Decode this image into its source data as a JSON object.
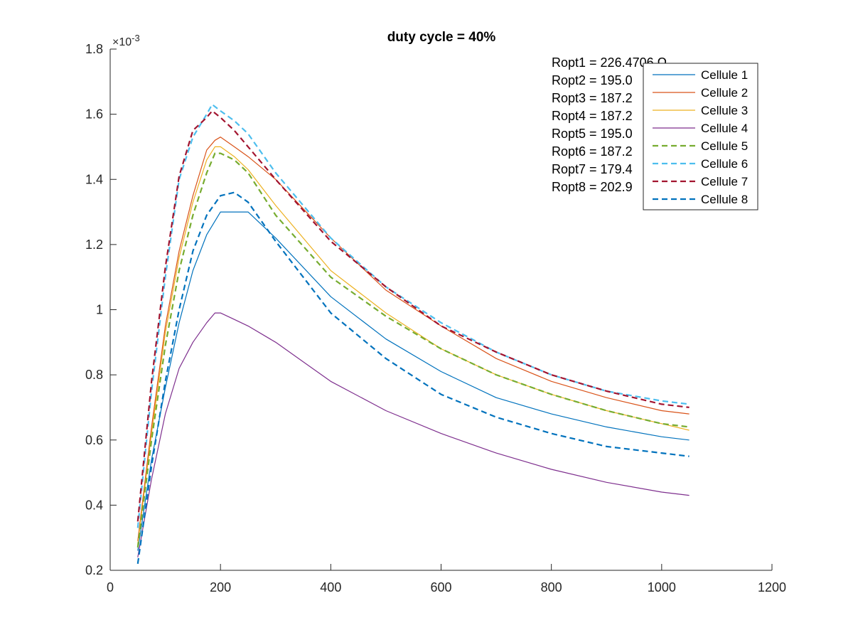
{
  "chart_data": {
    "type": "line",
    "title": "duty cycle = 40%",
    "xlabel": "",
    "ylabel": "",
    "xlim": [
      0,
      1200
    ],
    "ylim": [
      0.0002,
      0.0018
    ],
    "x_ticks": [
      0,
      200,
      400,
      600,
      800,
      1000,
      1200
    ],
    "x_tick_labels": [
      "0",
      "200",
      "400",
      "600",
      "800",
      "1000",
      "1200"
    ],
    "y_ticks": [
      0.0002,
      0.0004,
      0.0006,
      0.0008,
      0.001,
      0.0012,
      0.0014,
      0.0016,
      0.0018
    ],
    "y_tick_labels": [
      "0.2",
      "0.4",
      "0.6",
      "0.8",
      "1",
      "1.2",
      "1.4",
      "1.6",
      "1.8"
    ],
    "y_exponent_label": "×10",
    "y_exponent_power": "-3",
    "grid": false,
    "legend_position": "top-right",
    "annotations": [
      "Ropt1 = 226.4706 Ω",
      "Ropt2 = 195.0",
      "Ropt3 = 187.2",
      "Ropt4 = 187.2",
      "Ropt5 = 195.0",
      "Ropt6 = 187.2",
      "Ropt7 = 179.4",
      "Ropt8 = 202.9"
    ],
    "series": [
      {
        "name": "Cellule 1",
        "color": "#0072BD",
        "dash": false,
        "x": [
          50,
          75,
          100,
          125,
          150,
          175,
          200,
          225,
          250,
          300,
          400,
          500,
          600,
          700,
          800,
          900,
          1000,
          1050
        ],
        "y": [
          0.00026,
          0.00054,
          0.00076,
          0.00096,
          0.00112,
          0.00123,
          0.0013,
          0.0013,
          0.0013,
          0.00122,
          0.00104,
          0.00091,
          0.00081,
          0.00073,
          0.00068,
          0.00064,
          0.00061,
          0.0006
        ]
      },
      {
        "name": "Cellule 2",
        "color": "#D95319",
        "dash": false,
        "x": [
          50,
          75,
          100,
          125,
          150,
          175,
          190,
          200,
          225,
          250,
          300,
          400,
          500,
          600,
          700,
          800,
          900,
          1000,
          1050
        ],
        "y": [
          0.00029,
          0.00064,
          0.00095,
          0.00118,
          0.00135,
          0.00149,
          0.00152,
          0.00153,
          0.0015,
          0.00147,
          0.0014,
          0.00122,
          0.00106,
          0.00095,
          0.00085,
          0.00078,
          0.00073,
          0.00069,
          0.00068
        ]
      },
      {
        "name": "Cellule 3",
        "color": "#EDB120",
        "dash": false,
        "x": [
          50,
          75,
          100,
          125,
          150,
          175,
          190,
          200,
          225,
          250,
          300,
          400,
          500,
          600,
          700,
          800,
          900,
          1000,
          1050
        ],
        "y": [
          0.00028,
          0.00062,
          0.00093,
          0.00116,
          0.00133,
          0.00146,
          0.0015,
          0.0015,
          0.00147,
          0.00143,
          0.00132,
          0.00112,
          0.00099,
          0.00088,
          0.0008,
          0.00074,
          0.00069,
          0.00065,
          0.00063
        ]
      },
      {
        "name": "Cellule 4",
        "color": "#7E2F8E",
        "dash": false,
        "x": [
          50,
          75,
          100,
          125,
          150,
          175,
          190,
          200,
          225,
          250,
          300,
          400,
          500,
          600,
          700,
          800,
          900,
          1000,
          1050
        ],
        "y": [
          0.00024,
          0.00048,
          0.00068,
          0.00082,
          0.0009,
          0.00096,
          0.00099,
          0.00099,
          0.00097,
          0.00095,
          0.0009,
          0.00078,
          0.00069,
          0.00062,
          0.00056,
          0.00051,
          0.00047,
          0.00044,
          0.00043
        ]
      },
      {
        "name": "Cellule 5",
        "color": "#77AC30",
        "dash": true,
        "x": [
          50,
          75,
          100,
          125,
          150,
          175,
          190,
          200,
          225,
          250,
          300,
          400,
          500,
          600,
          700,
          800,
          900,
          1000,
          1050
        ],
        "y": [
          0.00027,
          0.0006,
          0.00089,
          0.00112,
          0.00129,
          0.00142,
          0.00148,
          0.00148,
          0.00146,
          0.00142,
          0.00129,
          0.0011,
          0.00098,
          0.00088,
          0.0008,
          0.00074,
          0.00069,
          0.00065,
          0.00064
        ]
      },
      {
        "name": "Cellule 6",
        "color": "#4DBEEE",
        "dash": true,
        "x": [
          50,
          75,
          100,
          125,
          150,
          175,
          185,
          200,
          225,
          250,
          300,
          400,
          500,
          600,
          700,
          800,
          900,
          1000,
          1050
        ],
        "y": [
          0.00033,
          0.00075,
          0.0011,
          0.0014,
          0.00153,
          0.0016,
          0.00163,
          0.00161,
          0.00158,
          0.00154,
          0.00142,
          0.00122,
          0.00107,
          0.00096,
          0.00087,
          0.0008,
          0.00075,
          0.00072,
          0.00071
        ]
      },
      {
        "name": "Cellule 7",
        "color": "#A2142F",
        "dash": true,
        "x": [
          50,
          75,
          100,
          125,
          150,
          175,
          185,
          200,
          225,
          250,
          300,
          400,
          500,
          600,
          700,
          800,
          900,
          1000,
          1050
        ],
        "y": [
          0.00035,
          0.00078,
          0.00113,
          0.00141,
          0.00155,
          0.00159,
          0.00161,
          0.00159,
          0.00155,
          0.0015,
          0.0014,
          0.00121,
          0.00107,
          0.00095,
          0.00087,
          0.0008,
          0.00075,
          0.00071,
          0.0007
        ]
      },
      {
        "name": "Cellule 8",
        "color": "#0072BD",
        "dash": true,
        "x": [
          50,
          75,
          100,
          125,
          150,
          175,
          200,
          225,
          250,
          300,
          400,
          500,
          600,
          700,
          800,
          900,
          1000,
          1050
        ],
        "y": [
          0.00022,
          0.00052,
          0.00078,
          0.001,
          0.00118,
          0.00129,
          0.00135,
          0.00136,
          0.00133,
          0.00121,
          0.00099,
          0.00085,
          0.00074,
          0.00067,
          0.00062,
          0.00058,
          0.00056,
          0.00055
        ]
      }
    ]
  }
}
